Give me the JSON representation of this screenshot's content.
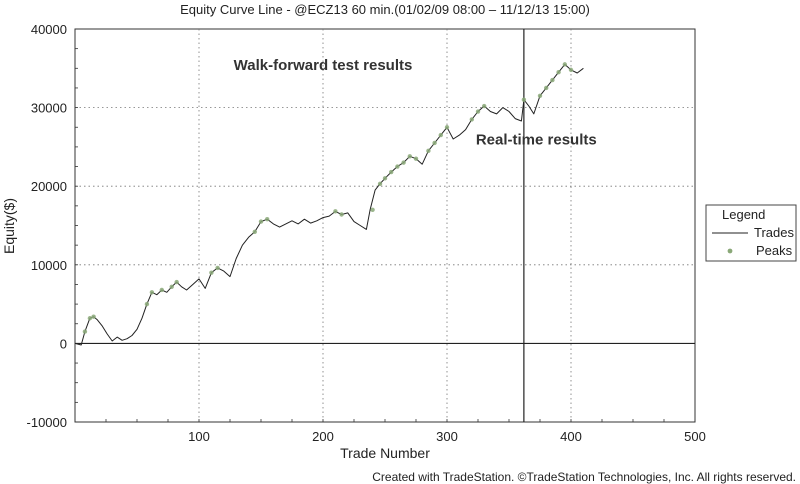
{
  "chart_data": {
    "type": "line",
    "title": "Equity Curve Line - @ECZ13 60 min.(01/02/09 08:00 – 11/12/13 15:00)",
    "xlabel": "Trade Number",
    "ylabel": "Equity($)",
    "xlim": [
      0,
      500
    ],
    "ylim": [
      -10000,
      40000
    ],
    "x_ticks": [
      100,
      200,
      300,
      400,
      500
    ],
    "y_ticks": [
      -10000,
      0,
      10000,
      20000,
      30000,
      40000
    ],
    "grid": true,
    "legend_position": "right",
    "legend": {
      "title": "Legend",
      "entries": [
        "Trades",
        "Peaks"
      ]
    },
    "divider_x": 362,
    "annotations": [
      {
        "text": "Walk-forward test results",
        "x": 200,
        "y": 34800
      },
      {
        "text": "Real-time results",
        "x": 372,
        "y": 25300
      }
    ],
    "series": [
      {
        "name": "Trades",
        "color": "#222222",
        "x": [
          0,
          5,
          8,
          12,
          15,
          18,
          22,
          26,
          30,
          34,
          38,
          42,
          46,
          50,
          54,
          58,
          62,
          66,
          70,
          74,
          78,
          82,
          86,
          90,
          95,
          100,
          105,
          110,
          115,
          120,
          125,
          130,
          135,
          140,
          145,
          150,
          155,
          160,
          165,
          170,
          175,
          180,
          185,
          190,
          195,
          200,
          205,
          210,
          215,
          220,
          225,
          230,
          235,
          238,
          242,
          246,
          250,
          255,
          260,
          265,
          270,
          275,
          280,
          285,
          290,
          295,
          300,
          305,
          310,
          315,
          320,
          325,
          330,
          335,
          340,
          345,
          350,
          355,
          360,
          362,
          366,
          370,
          375,
          380,
          385,
          390,
          395,
          400,
          405,
          410
        ],
        "values": [
          0,
          -200,
          1500,
          3200,
          3400,
          3000,
          2200,
          1200,
          300,
          800,
          400,
          600,
          1000,
          1800,
          3200,
          5000,
          6500,
          6200,
          6800,
          6500,
          7200,
          7800,
          7200,
          6800,
          7500,
          8200,
          7000,
          9000,
          9600,
          9200,
          8500,
          10800,
          12500,
          13500,
          14200,
          15500,
          15800,
          15200,
          14800,
          15200,
          15600,
          15200,
          15800,
          15300,
          15600,
          16000,
          16200,
          16800,
          16400,
          16600,
          15500,
          15000,
          14500,
          17000,
          19500,
          20300,
          21000,
          21800,
          22500,
          23000,
          23800,
          23500,
          22800,
          24500,
          25500,
          26500,
          27500,
          26000,
          26500,
          27200,
          28500,
          29500,
          30200,
          29500,
          29200,
          30000,
          29500,
          28600,
          28300,
          31000,
          30200,
          29200,
          31500,
          32500,
          33500,
          34500,
          35500,
          34800,
          34400,
          35000
        ]
      },
      {
        "name": "Peaks",
        "color": "#8aa878",
        "x": [
          8,
          12,
          15,
          58,
          62,
          70,
          78,
          82,
          110,
          115,
          145,
          150,
          155,
          210,
          215,
          240,
          246,
          250,
          255,
          260,
          265,
          270,
          275,
          285,
          290,
          295,
          300,
          320,
          325,
          330,
          362,
          375,
          380,
          385,
          390,
          395,
          400
        ],
        "values": [
          1500,
          3200,
          3400,
          5000,
          6500,
          6800,
          7200,
          7800,
          9000,
          9600,
          14200,
          15500,
          15800,
          16800,
          16400,
          17000,
          20300,
          21000,
          21800,
          22500,
          23000,
          23800,
          23500,
          24500,
          25500,
          26500,
          27500,
          28500,
          29500,
          30200,
          31000,
          31500,
          32500,
          33500,
          34500,
          35500,
          34800
        ]
      }
    ]
  },
  "footer": "Created with TradeStation. ©TradeStation Technologies, Inc. All rights reserved."
}
